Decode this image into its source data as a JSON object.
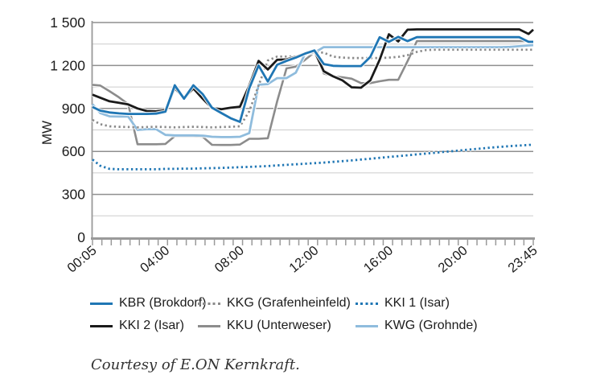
{
  "caption": {
    "text": "Courtesy of E.ON Kernkraft."
  },
  "chart_data": {
    "type": "line",
    "title": "",
    "xlabel": "",
    "ylabel": "MW",
    "ylim": [
      0,
      1500
    ],
    "xlim_minutes": [
      5,
      1425
    ],
    "grid": "on",
    "legend_position": "bottom",
    "y_major_ticks": [
      0,
      300,
      600,
      900,
      1200,
      1500
    ],
    "y_tick_labels": [
      "0",
      "300",
      "600",
      "900",
      "1 200",
      "1 500"
    ],
    "y_minor_ticks": [
      150,
      450,
      750,
      1050,
      1350
    ],
    "x_minor_tick_count": 48,
    "x_tick_minutes": [
      5,
      240,
      480,
      720,
      960,
      1200,
      1425
    ],
    "x_tick_labels": [
      "00:05",
      "04:00",
      "08:00",
      "12:00",
      "16:00",
      "20:00",
      "23:45"
    ],
    "x_minutes": [
      5,
      30,
      60,
      90,
      120,
      150,
      180,
      210,
      240,
      270,
      300,
      330,
      360,
      390,
      420,
      450,
      480,
      510,
      540,
      570,
      600,
      630,
      660,
      690,
      720,
      750,
      780,
      810,
      840,
      870,
      900,
      930,
      960,
      990,
      1020,
      1050,
      1080,
      1110,
      1140,
      1170,
      1200,
      1230,
      1260,
      1290,
      1320,
      1350,
      1380,
      1410,
      1425
    ],
    "colors": {
      "axis": "#9a9a9a",
      "major_grid": "#8f8f8f",
      "minor_grid": "#cccccc",
      "text": "#1c1c1c"
    },
    "series": [
      {
        "label": "KBR (Brokdorf)",
        "color": "#1f76b4",
        "style": "solid",
        "width": 2.8,
        "values": [
          910,
          885,
          872,
          866,
          862,
          862,
          862,
          864,
          878,
          1062,
          968,
          1062,
          1000,
          905,
          868,
          832,
          806,
          1040,
          1200,
          1088,
          1205,
          1232,
          1255,
          1283,
          1305,
          1210,
          1198,
          1196,
          1196,
          1196,
          1260,
          1397,
          1365,
          1400,
          1370,
          1398,
          1398,
          1398,
          1398,
          1398,
          1398,
          1398,
          1398,
          1398,
          1398,
          1398,
          1398,
          1365,
          1365
        ]
      },
      {
        "label": "KKG (Grafenheinfeld)",
        "color": "#8a8a8a",
        "style": "dotted",
        "width": 2.7,
        "values": [
          820,
          790,
          775,
          772,
          770,
          768,
          770,
          772,
          770,
          768,
          770,
          772,
          770,
          768,
          770,
          772,
          775,
          880,
          1060,
          1235,
          1262,
          1262,
          1266,
          1280,
          1292,
          1290,
          1262,
          1255,
          1252,
          1252,
          1252,
          1252,
          1255,
          1260,
          1272,
          1295,
          1308,
          1310,
          1310,
          1310,
          1310,
          1310,
          1310,
          1310,
          1310,
          1310,
          1310,
          1310,
          1310
        ]
      },
      {
        "label": "KKI 1 (Isar)",
        "color": "#1f76b4",
        "style": "dotted",
        "width": 2.8,
        "values": [
          543,
          500,
          478,
          475,
          475,
          475,
          475,
          475,
          478,
          478,
          480,
          480,
          482,
          483,
          485,
          487,
          490,
          492,
          495,
          498,
          502,
          506,
          510,
          514,
          518,
          522,
          527,
          532,
          537,
          543,
          549,
          555,
          561,
          567,
          573,
          579,
          585,
          591,
          597,
          603,
          609,
          615,
          621,
          627,
          632,
          637,
          641,
          645,
          648
        ]
      },
      {
        "label": "KKI 2 (Isar)",
        "color": "#1a1a1a",
        "style": "solid",
        "width": 2.8,
        "values": [
          996,
          975,
          950,
          940,
          928,
          900,
          882,
          880,
          888,
          1042,
          972,
          1040,
          968,
          902,
          895,
          905,
          912,
          1060,
          1232,
          1172,
          1240,
          1242,
          1262,
          1285,
          1302,
          1160,
          1124,
          1096,
          1048,
          1045,
          1096,
          1240,
          1418,
          1368,
          1450,
          1452,
          1452,
          1452,
          1452,
          1452,
          1452,
          1452,
          1452,
          1452,
          1452,
          1452,
          1452,
          1420,
          1450
        ]
      },
      {
        "label": "KKU (Unterweser)",
        "color": "#8c8c8c",
        "style": "solid",
        "width": 2.6,
        "values": [
          1065,
          1060,
          1020,
          978,
          930,
          650,
          650,
          650,
          652,
          706,
          706,
          706,
          702,
          646,
          645,
          645,
          648,
          688,
          688,
          692,
          950,
          1180,
          1192,
          1240,
          1292,
          1145,
          1124,
          1118,
          1108,
          1077,
          1077,
          1090,
          1100,
          1100,
          1230,
          1370,
          1370,
          1370,
          1370,
          1370,
          1370,
          1370,
          1370,
          1370,
          1370,
          1370,
          1370,
          1370,
          1370
        ]
      },
      {
        "label": "KWG (Grohnde)",
        "color": "#8fbcdd",
        "style": "solid",
        "width": 2.8,
        "values": [
          930,
          868,
          845,
          843,
          843,
          750,
          755,
          755,
          715,
          712,
          712,
          712,
          710,
          702,
          700,
          700,
          702,
          728,
          1065,
          1070,
          1112,
          1112,
          1150,
          1283,
          1290,
          1328,
          1328,
          1328,
          1328,
          1328,
          1328,
          1328,
          1328,
          1328,
          1328,
          1328,
          1328,
          1328,
          1328,
          1328,
          1328,
          1328,
          1328,
          1328,
          1328,
          1330,
          1335,
          1340,
          1342
        ]
      }
    ],
    "draw_order": [
      4,
      5,
      1,
      2,
      3,
      0
    ]
  }
}
